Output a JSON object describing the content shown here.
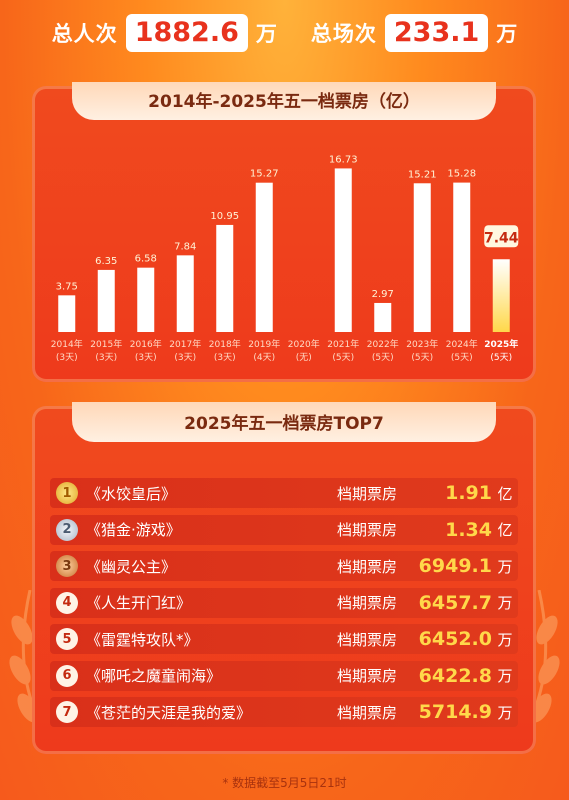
{
  "header": {
    "total_people_label": "总人次",
    "total_people_value": "1882.6",
    "total_people_unit": "万",
    "total_shows_label": "总场次",
    "total_shows_value": "233.1",
    "total_shows_unit": "万"
  },
  "chart_data": {
    "type": "bar",
    "title": "2014年-2025年五一档票房（亿）",
    "categories": [
      "2014年",
      "2015年",
      "2016年",
      "2017年",
      "2018年",
      "2019年",
      "2020年",
      "2021年",
      "2022年",
      "2023年",
      "2024年",
      "2025年"
    ],
    "sublabels": [
      "(3天)",
      "(3天)",
      "(3天)",
      "(3天)",
      "(3天)",
      "(4天)",
      "(无)",
      "(5天)",
      "(5天)",
      "(5天)",
      "(5天)",
      "(5天)"
    ],
    "values": [
      3.75,
      6.35,
      6.58,
      7.84,
      10.95,
      15.27,
      0,
      16.73,
      2.97,
      15.21,
      15.28,
      7.44
    ],
    "value_labels": [
      "3.75",
      "6.35",
      "6.58",
      "7.84",
      "10.95",
      "15.27",
      "",
      "16.73",
      "2.97",
      "15.21",
      "15.28",
      "7.44"
    ],
    "highlight_index": 11,
    "ylim": [
      0,
      18
    ],
    "xlabel": "",
    "ylabel": "",
    "grid": false
  },
  "top7": {
    "title": "2025年五一档票房TOP7",
    "tag": "档期票房",
    "items": [
      {
        "rank": "1",
        "title": "《水饺皇后》",
        "value": "1.91",
        "unit": "亿"
      },
      {
        "rank": "2",
        "title": "《猎金·游戏》",
        "value": "1.34",
        "unit": "亿"
      },
      {
        "rank": "3",
        "title": "《幽灵公主》",
        "value": "6949.1",
        "unit": "万"
      },
      {
        "rank": "4",
        "title": "《人生开门红》",
        "value": "6457.7",
        "unit": "万"
      },
      {
        "rank": "5",
        "title": "《雷霆特攻队*》",
        "value": "6452.0",
        "unit": "万"
      },
      {
        "rank": "6",
        "title": "《哪吒之魔童闹海》",
        "value": "6422.8",
        "unit": "万"
      },
      {
        "rank": "7",
        "title": "《苍茫的天涯是我的爱》",
        "value": "5714.9",
        "unit": "万"
      }
    ]
  },
  "footnote": "* 数据截至5月5日21时"
}
